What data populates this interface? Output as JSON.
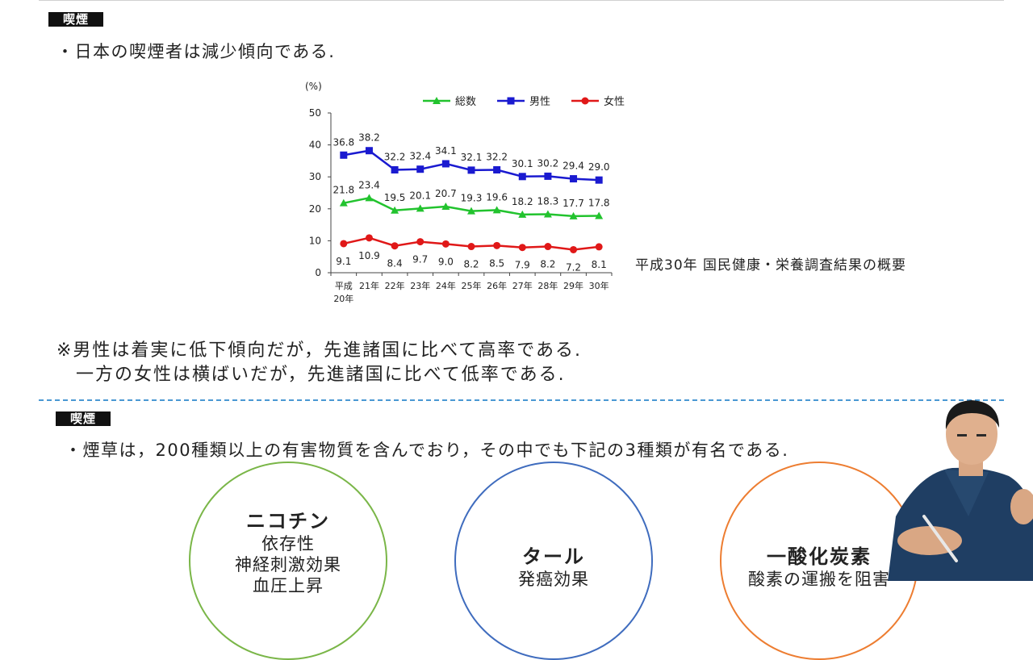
{
  "section1": {
    "tag": "喫煙",
    "bullet": "・日本の喫煙者は減少傾向である.",
    "source": "平成30年 国民健康・栄養調査結果の概要",
    "note_line1": "※男性は着実に低下傾向だが，先進諸国に比べて高率である.",
    "note_line2": "一方の女性は横ばいだが，先進諸国に比べて低率である."
  },
  "chart_data": {
    "type": "line",
    "ylabel": "(%)",
    "ylim": [
      0,
      50
    ],
    "yticks": [
      0,
      10,
      20,
      30,
      40,
      50
    ],
    "categories": [
      "平成20年",
      "21年",
      "22年",
      "23年",
      "24年",
      "25年",
      "26年",
      "27年",
      "28年",
      "29年",
      "30年"
    ],
    "legend_position": "top",
    "series": [
      {
        "name": "総数",
        "color": "#22c32e",
        "marker": "triangle",
        "label_pos": "above",
        "values": [
          21.8,
          23.4,
          19.5,
          20.1,
          20.7,
          19.3,
          19.6,
          18.2,
          18.3,
          17.7,
          17.8
        ]
      },
      {
        "name": "男性",
        "color": "#1a1ad0",
        "marker": "square",
        "label_pos": "above",
        "values": [
          36.8,
          38.2,
          32.2,
          32.4,
          34.1,
          32.1,
          32.2,
          30.1,
          30.2,
          29.4,
          29.0
        ]
      },
      {
        "name": "女性",
        "color": "#e01818",
        "marker": "circle",
        "label_pos": "below",
        "values": [
          9.1,
          10.9,
          8.4,
          9.7,
          9.0,
          8.2,
          8.5,
          7.9,
          8.2,
          7.2,
          8.1
        ]
      }
    ]
  },
  "section2": {
    "tag": "喫煙",
    "bullet": "・煙草は，200種類以上の有害物質を含んでおり，その中でも下記の3種類が有名である.",
    "circles": [
      {
        "title": "ニコチン",
        "lines": [
          "依存性",
          "神経刺激効果",
          "血圧上昇"
        ],
        "color": "#7ab648"
      },
      {
        "title": "タール",
        "lines": [
          "発癌効果"
        ],
        "color": "#3f6cbe"
      },
      {
        "title": "一酸化炭素",
        "lines": [
          "酸素の運搬を阻害"
        ],
        "color": "#ed7d31"
      }
    ]
  }
}
